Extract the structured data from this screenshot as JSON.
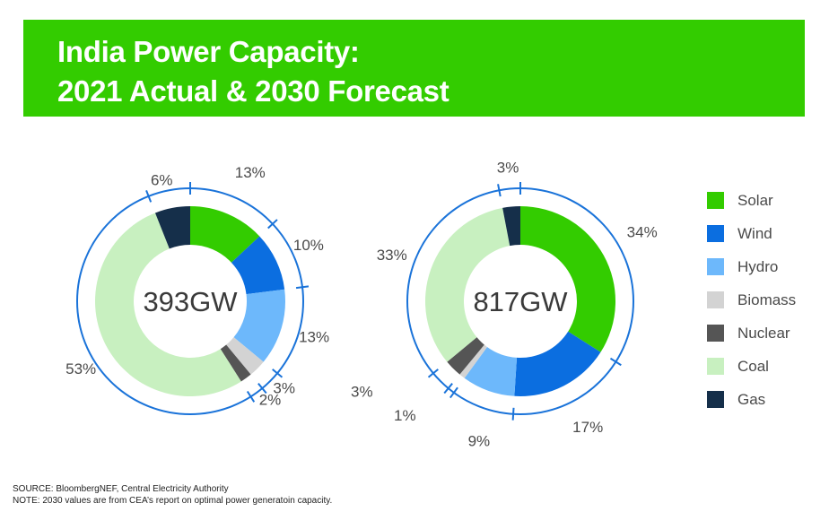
{
  "title": {
    "line1": "India Power Capacity:",
    "line2": "2021 Actual & 2030 Forecast"
  },
  "colors": {
    "banner": "#33cc00",
    "outer_ring": "#1a73d9",
    "Solar": "#33cc00",
    "Wind": "#0b6ee0",
    "Hydro": "#6db8fb",
    "Biomass": "#d3d3d3",
    "Nuclear": "#555555",
    "Coal": "#c8f0c0",
    "Gas": "#152f4a"
  },
  "legend": {
    "items": [
      "Solar",
      "Wind",
      "Hydro",
      "Biomass",
      "Nuclear",
      "Coal",
      "Gas"
    ]
  },
  "chart_data": [
    {
      "type": "donut",
      "center_label": "393GW",
      "categories": [
        "Solar",
        "Wind",
        "Hydro",
        "Biomass",
        "Nuclear",
        "Coal",
        "Gas"
      ],
      "values": [
        13,
        10,
        13,
        3,
        2,
        53,
        6
      ],
      "labels": [
        "13%",
        "10%",
        "13%",
        "3%",
        "2%",
        "53%",
        "6%"
      ]
    },
    {
      "type": "donut",
      "center_label": "817GW",
      "categories": [
        "Solar",
        "Wind",
        "Hydro",
        "Biomass",
        "Nuclear",
        "Coal",
        "Gas"
      ],
      "values": [
        34,
        17,
        9,
        1,
        3,
        33,
        3
      ],
      "labels": [
        "34%",
        "17%",
        "9%",
        "1%",
        "3%",
        "33%",
        "3%"
      ]
    }
  ],
  "footnotes": {
    "source": "SOURCE: BloombergNEF, Central Electricity Authority",
    "note": "NOTE: 2030 values are from CEA’s report on optimal power generatoin capacity."
  }
}
